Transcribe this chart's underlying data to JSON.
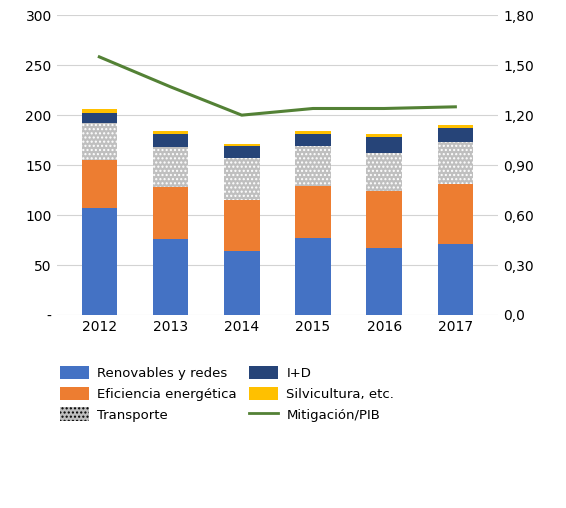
{
  "years": [
    2012,
    2013,
    2014,
    2015,
    2016,
    2017
  ],
  "renovables": [
    107,
    76,
    64,
    77,
    67,
    71
  ],
  "eficiencia": [
    48,
    52,
    51,
    52,
    57,
    60
  ],
  "transporte": [
    37,
    40,
    42,
    40,
    38,
    42
  ],
  "id": [
    10,
    13,
    12,
    12,
    16,
    14
  ],
  "silvicultura": [
    4,
    3,
    2,
    3,
    3,
    3
  ],
  "mitigacion_pib": [
    1.55,
    1.37,
    1.2,
    1.24,
    1.24,
    1.25
  ],
  "left_ylim": [
    0,
    300
  ],
  "left_yticks": [
    0,
    50,
    100,
    150,
    200,
    250,
    300
  ],
  "left_yticklabels": [
    "-",
    "50",
    "100",
    "150",
    "200",
    "250",
    "300"
  ],
  "right_ylim": [
    0,
    1.8
  ],
  "right_yticks": [
    0.0,
    0.3,
    0.6,
    0.9,
    1.2,
    1.5,
    1.8
  ],
  "right_yticklabels": [
    "0,0",
    "0,30",
    "0,60",
    "0,90",
    "1,20",
    "1,50",
    "1,80"
  ],
  "color_renovables": "#4472C4",
  "color_eficiencia": "#ED7D31",
  "color_transporte": "#BFBFBF",
  "color_id": "#264478",
  "color_silvicultura": "#FFC000",
  "color_mitigacion": "#538135",
  "bar_width": 0.5,
  "legend_labels": [
    "Renovables y redes",
    "Eficiencia energética",
    "Transporte",
    "I+D",
    "Silvicultura, etc.",
    "Mitigación/PIB"
  ],
  "fig_bg": "#FFFFFF",
  "grid_color": "#D3D3D3"
}
